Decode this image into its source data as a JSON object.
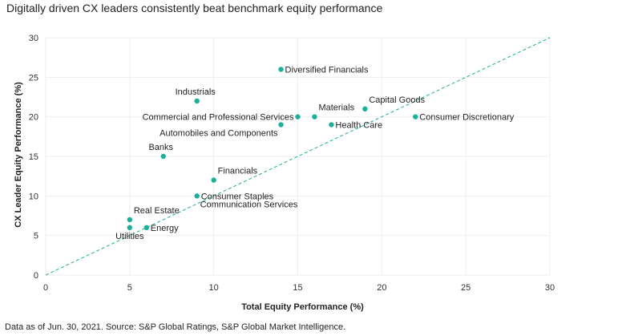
{
  "page": {
    "title": "Digitally driven CX leaders consistently beat benchmark equity performance",
    "footnote": "Data as of Jun. 30, 2021. Source: S&P Global Ratings, S&P Global Market Intelligence."
  },
  "chart_data": {
    "type": "scatter",
    "title": "Digitally driven CX leaders consistently beat benchmark equity performance",
    "xlabel": "Total Equity Performance (%)",
    "ylabel": "CX Leader Equity Performance (%)",
    "xlim": [
      0,
      30
    ],
    "ylim": [
      0,
      30
    ],
    "xticks": [
      0,
      5,
      10,
      15,
      20,
      25,
      30
    ],
    "yticks": [
      0,
      5,
      10,
      15,
      20,
      25,
      30
    ],
    "grid": true,
    "reference_line": {
      "style": "dashed",
      "from": [
        0,
        0
      ],
      "to": [
        30,
        30
      ],
      "color": "#1ab09a"
    },
    "point_color": "#1ab09a",
    "points": [
      {
        "label": "Diversified Financials",
        "x": 14,
        "y": 26,
        "label_pos": "right"
      },
      {
        "label": "Industrials",
        "x": 9,
        "y": 22,
        "label_pos": "above"
      },
      {
        "label": "Commercial and Professional Services",
        "x": 15,
        "y": 20,
        "label_pos": "left"
      },
      {
        "label": "Materials",
        "x": 16,
        "y": 20,
        "label_pos": "above-right"
      },
      {
        "label": "Capital Goods",
        "x": 19,
        "y": 21,
        "label_pos": "above-right"
      },
      {
        "label": "Consumer Discretionary",
        "x": 22,
        "y": 20,
        "label_pos": "right"
      },
      {
        "label": "Automobiles and Components",
        "x": 14,
        "y": 19,
        "label_pos": "below-left"
      },
      {
        "label": "Health Care",
        "x": 17,
        "y": 19,
        "label_pos": "right"
      },
      {
        "label": "Banks",
        "x": 7,
        "y": 15,
        "label_pos": "above-left"
      },
      {
        "label": "Financials",
        "x": 10,
        "y": 12,
        "label_pos": "above-right"
      },
      {
        "label": "Consumer Staples",
        "x": 9,
        "y": 10,
        "label_pos": "right"
      },
      {
        "label": "Communication Services",
        "x": 9,
        "y": 10,
        "label_pos": "below-right"
      },
      {
        "label": "Real Estate",
        "x": 5,
        "y": 7,
        "label_pos": "above-right"
      },
      {
        "label": "Energy",
        "x": 6,
        "y": 6,
        "label_pos": "right"
      },
      {
        "label": "Utilities",
        "x": 5,
        "y": 6,
        "label_pos": "below"
      }
    ]
  }
}
